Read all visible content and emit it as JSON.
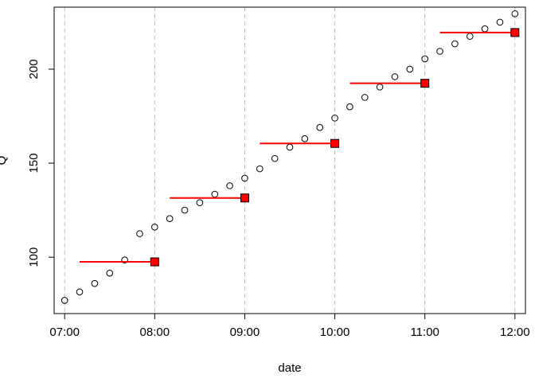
{
  "chart_data": {
    "type": "scatter",
    "xlabel": "date",
    "ylabel": "Q",
    "x_ticks": [
      "07:00",
      "08:00",
      "09:00",
      "10:00",
      "11:00",
      "12:00"
    ],
    "y_ticks": [
      100,
      150,
      200
    ],
    "xlim": [
      "06:53",
      "12:07"
    ],
    "ylim": [
      70,
      233
    ],
    "grid": "vertical dashed at hourly ticks",
    "colors": {
      "segments": "#ff0000",
      "squares": "#ff0000",
      "points_outline": "#000000",
      "grid": "#bebebe"
    },
    "points": {
      "x": [
        "07:00",
        "07:10",
        "07:20",
        "07:30",
        "07:40",
        "07:50",
        "08:00",
        "08:10",
        "08:20",
        "08:30",
        "08:40",
        "08:50",
        "09:00",
        "09:10",
        "09:20",
        "09:30",
        "09:40",
        "09:50",
        "10:00",
        "10:10",
        "10:20",
        "10:30",
        "10:40",
        "10:50",
        "11:00",
        "11:10",
        "11:20",
        "11:30",
        "11:40",
        "11:50",
        "12:00"
      ],
      "y": [
        77,
        81.5,
        86,
        91.5,
        98.5,
        112.5,
        116,
        120.5,
        125,
        129,
        133.5,
        138,
        142,
        147,
        152.5,
        158.5,
        163,
        169,
        174,
        180,
        185,
        190.5,
        196,
        200,
        205.5,
        209.5,
        213.5,
        217.5,
        221.5,
        225,
        229.5
      ]
    },
    "hourly_means": {
      "x": [
        "08:00",
        "09:00",
        "10:00",
        "11:00",
        "12:00"
      ],
      "y": [
        97.5,
        131.5,
        160.5,
        192.5,
        219.5
      ],
      "segment_start": [
        "07:10",
        "08:10",
        "09:10",
        "10:10",
        "11:10"
      ]
    }
  }
}
